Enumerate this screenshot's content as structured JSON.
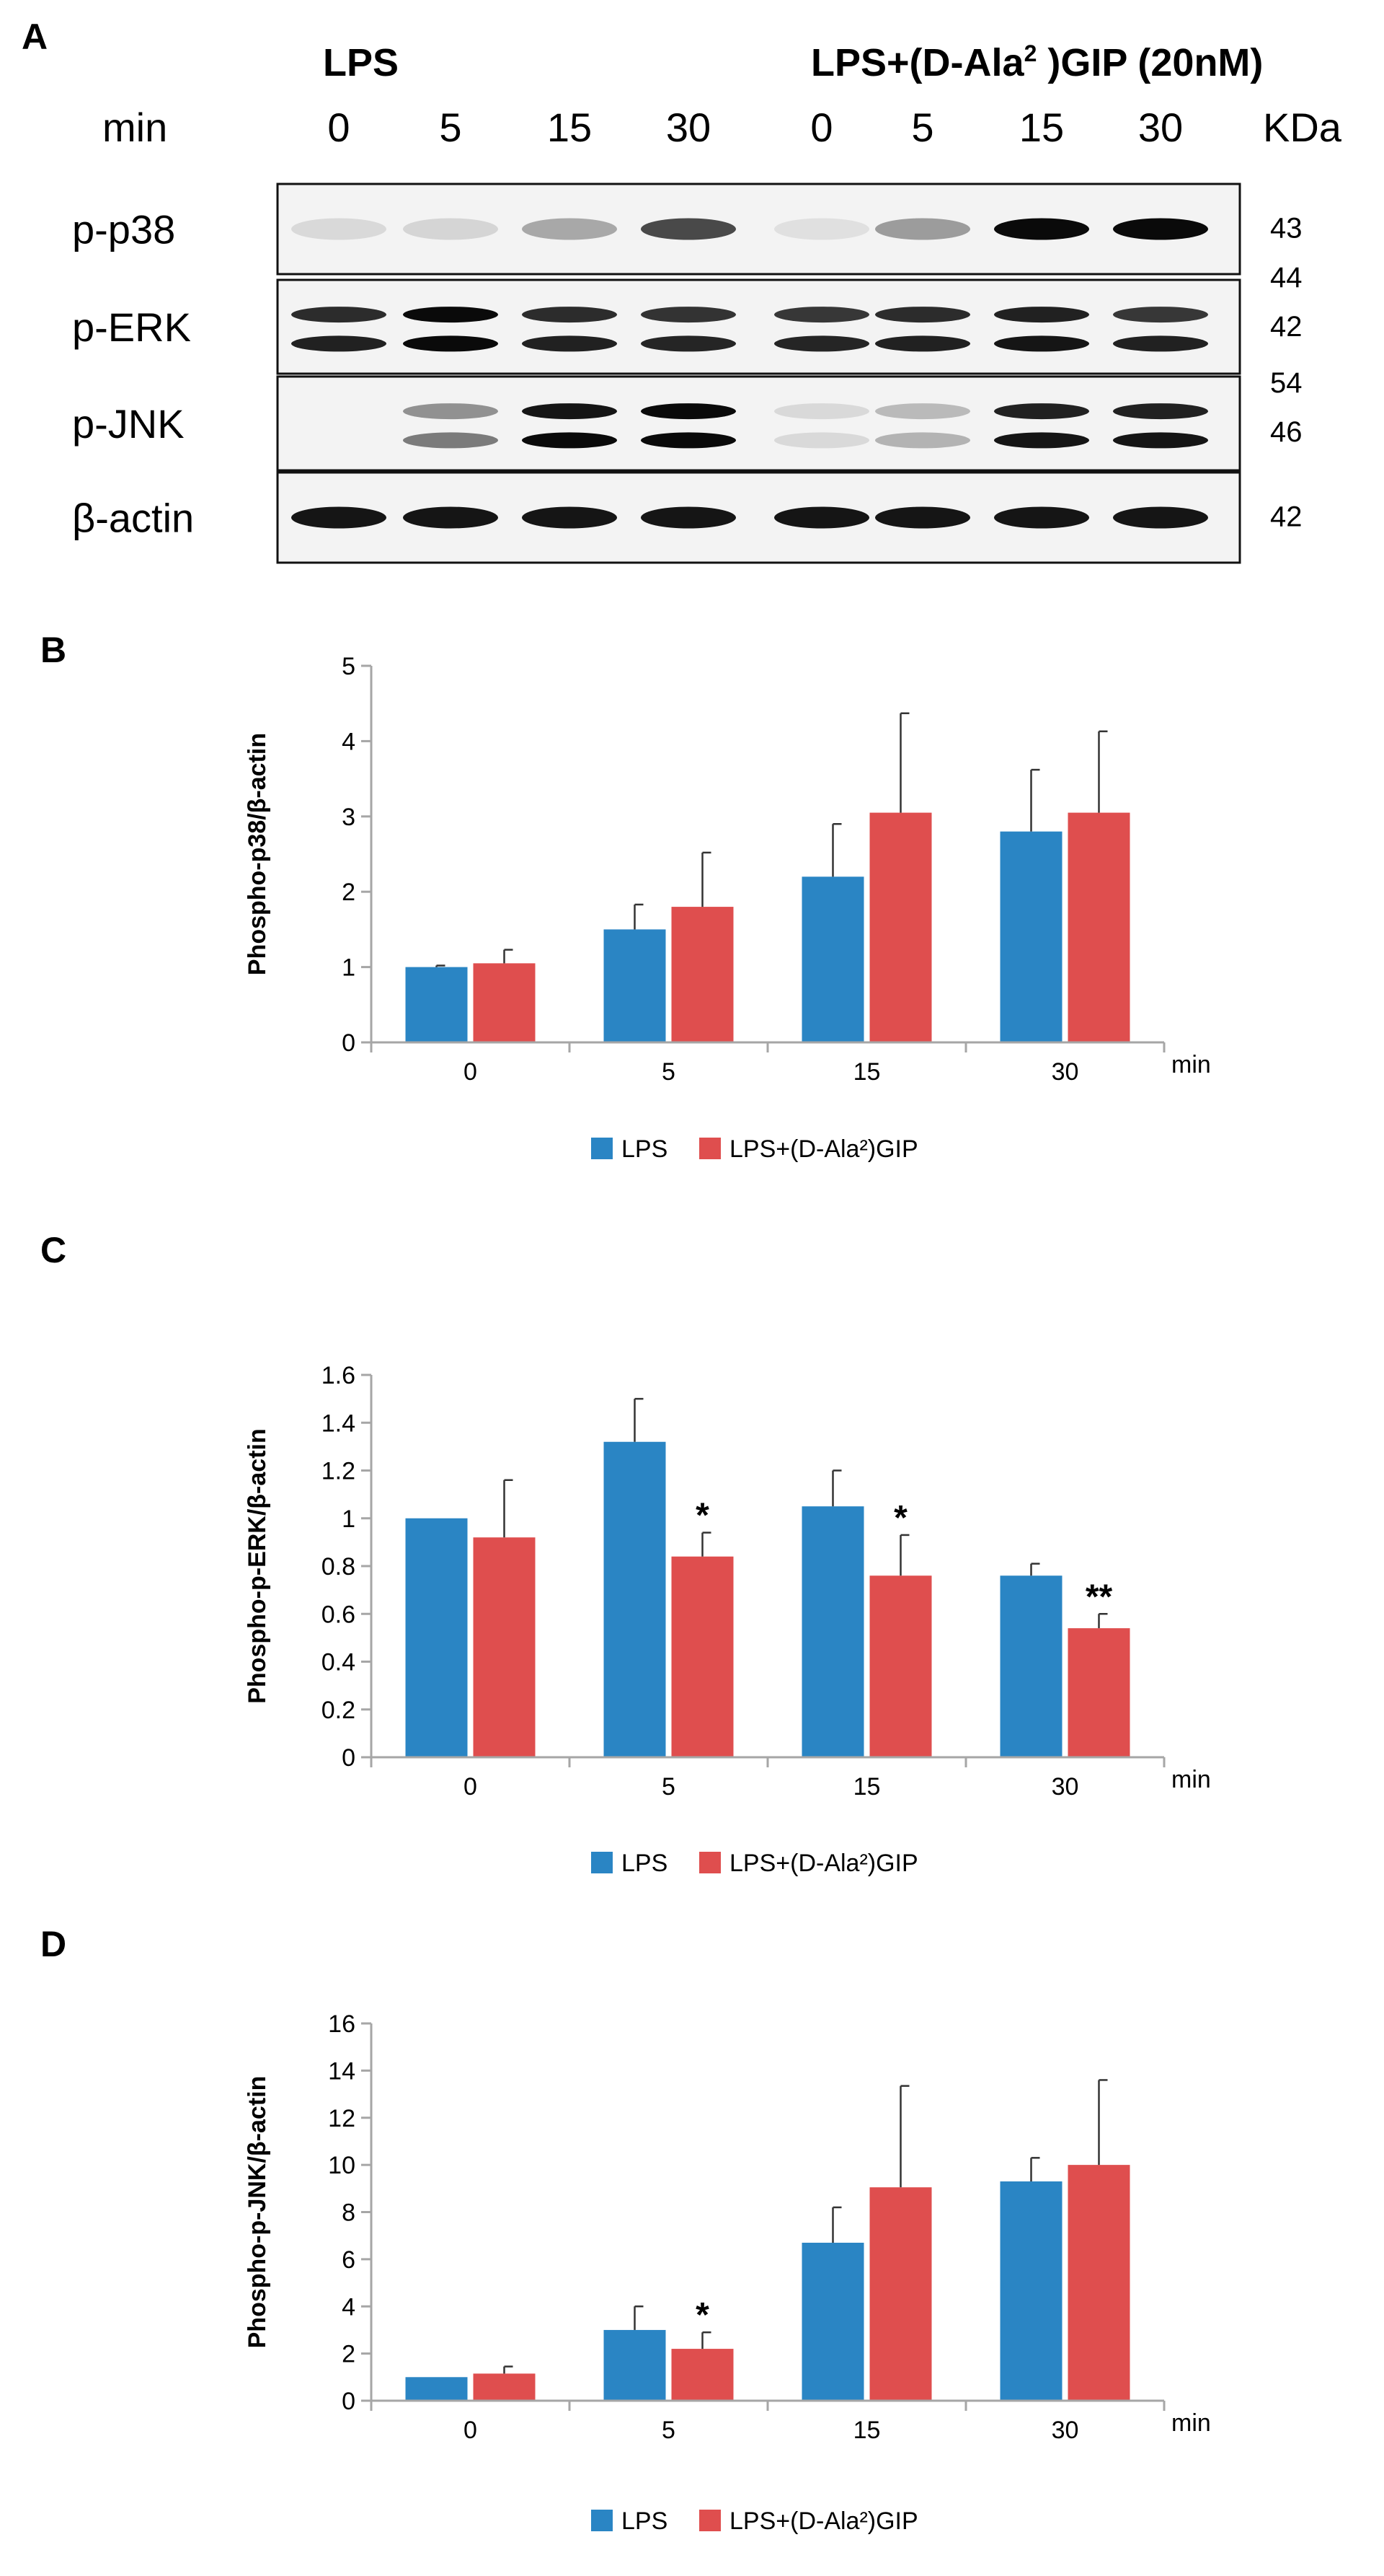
{
  "colors": {
    "lps": "#2a85c4",
    "gip": "#df4e4e",
    "axis": "#a6a6a6"
  },
  "blot": {
    "panel": "A",
    "group1": "LPS",
    "group2_prefix": "LPS+(D-Ala",
    "group2_sup": "2",
    "group2_suffix": " )GIP (20nM)",
    "min_label": "min",
    "kda_label": "KDa",
    "times": [
      "0",
      "5",
      "15",
      "30",
      "0",
      "5",
      "15",
      "30"
    ],
    "lanes": [
      {
        "label": "p-p38",
        "mw": [
          "43"
        ],
        "bands": [
          [
            0.08,
            0.1,
            0.3,
            0.72,
            0.05,
            0.35,
            1.0,
            1.0
          ]
        ]
      },
      {
        "label": "p-ERK",
        "mw": [
          "44",
          "42"
        ],
        "bands": [
          [
            0.85,
            1.0,
            0.85,
            0.82,
            0.8,
            0.85,
            0.9,
            0.8
          ],
          [
            0.9,
            1.0,
            0.9,
            0.88,
            0.88,
            0.9,
            0.95,
            0.9
          ]
        ]
      },
      {
        "label": "p-JNK",
        "mw": [
          "54",
          "46"
        ],
        "bands": [
          [
            0.0,
            0.4,
            0.95,
            1.0,
            0.08,
            0.22,
            0.9,
            0.9
          ],
          [
            0.0,
            0.5,
            1.0,
            1.0,
            0.08,
            0.25,
            0.95,
            0.95
          ]
        ]
      },
      {
        "label": "β-actin",
        "mw": [
          "42"
        ],
        "bands": [
          [
            0.95,
            0.95,
            0.95,
            0.95,
            0.95,
            0.95,
            0.95,
            0.95
          ]
        ]
      }
    ]
  },
  "chart_data": [
    {
      "panel": "B",
      "type": "bar",
      "title": "",
      "ylabel": "Phospho-p38/β-actin",
      "xlabel": "min",
      "categories": [
        "0",
        "5",
        "15",
        "30"
      ],
      "ylim": [
        0,
        5
      ],
      "yticks": [
        "0",
        "1",
        "2",
        "3",
        "4",
        "5"
      ],
      "series": [
        {
          "name": "LPS",
          "values": [
            1.0,
            1.5,
            2.2,
            2.8
          ],
          "errors": [
            0.02,
            0.33,
            0.7,
            0.82
          ]
        },
        {
          "name": "LPS+(D-Ala²)GIP",
          "values": [
            1.05,
            1.8,
            3.05,
            3.05
          ],
          "errors": [
            0.18,
            0.72,
            1.32,
            1.08
          ]
        }
      ],
      "annotations": []
    },
    {
      "panel": "C",
      "type": "bar",
      "title": "",
      "ylabel": "Phospho-p-ERK/β-actin",
      "xlabel": "min",
      "categories": [
        "0",
        "5",
        "15",
        "30"
      ],
      "ylim": [
        0,
        1.6
      ],
      "yticks": [
        "0",
        "0.2",
        "0.4",
        "0.6",
        "0.8",
        "1",
        "1.2",
        "1.4",
        "1.6"
      ],
      "series": [
        {
          "name": "LPS",
          "values": [
            1.0,
            1.32,
            1.05,
            0.76
          ],
          "errors": [
            0.0,
            0.18,
            0.15,
            0.05
          ]
        },
        {
          "name": "LPS+(D-Ala²)GIP",
          "values": [
            0.92,
            0.84,
            0.76,
            0.54
          ],
          "errors": [
            0.24,
            0.1,
            0.17,
            0.06
          ]
        }
      ],
      "annotations": [
        {
          "category": "5",
          "series": "LPS+(D-Ala²)GIP",
          "text": "*"
        },
        {
          "category": "15",
          "series": "LPS+(D-Ala²)GIP",
          "text": "*"
        },
        {
          "category": "30",
          "series": "LPS+(D-Ala²)GIP",
          "text": "**"
        }
      ]
    },
    {
      "panel": "D",
      "type": "bar",
      "title": "",
      "ylabel": "Phospho-p-JNK/β-actin",
      "xlabel": "min",
      "categories": [
        "0",
        "5",
        "15",
        "30"
      ],
      "ylim": [
        0,
        16
      ],
      "yticks": [
        "0",
        "2",
        "4",
        "6",
        "8",
        "10",
        "12",
        "14",
        "16"
      ],
      "series": [
        {
          "name": "LPS",
          "values": [
            1.0,
            3.0,
            6.7,
            9.3
          ],
          "errors": [
            0.0,
            1.0,
            1.5,
            1.0
          ]
        },
        {
          "name": "LPS+(D-Ala²)GIP",
          "values": [
            1.15,
            2.2,
            9.05,
            10.0
          ],
          "errors": [
            0.3,
            0.7,
            4.3,
            3.6
          ]
        }
      ],
      "annotations": [
        {
          "category": "5",
          "series": "LPS+(D-Ala²)GIP",
          "text": "*"
        }
      ]
    }
  ]
}
